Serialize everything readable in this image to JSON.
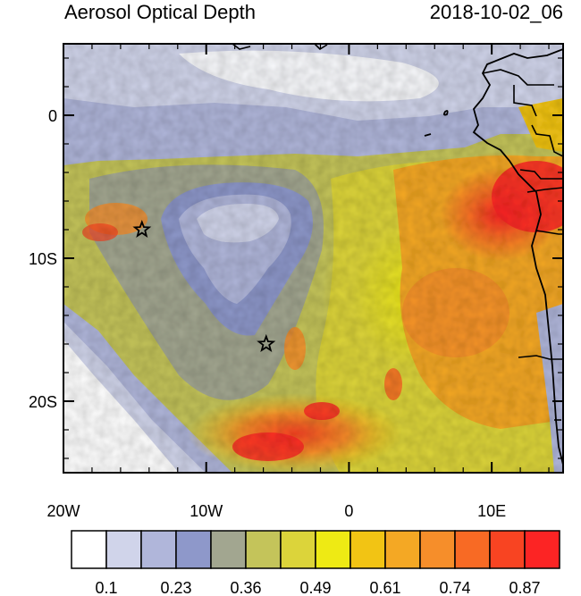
{
  "title": "Aerosol Optical Depth",
  "timestamp": "2018-10-02_06",
  "map": {
    "lon_range": [
      -20,
      15
    ],
    "lat_range": [
      -25,
      5
    ],
    "x_ticks": [
      {
        "lon": -20,
        "label": "20W"
      },
      {
        "lon": -10,
        "label": "10W"
      },
      {
        "lon": 0,
        "label": "0"
      },
      {
        "lon": 10,
        "label": "10E"
      }
    ],
    "y_ticks": [
      {
        "lat": 0,
        "label": "0"
      },
      {
        "lat": -10,
        "label": "10S"
      },
      {
        "lat": -20,
        "label": "20S"
      }
    ],
    "markers": [
      {
        "name": "star-marker-1",
        "symbol": "star",
        "lon": -14.5,
        "lat": -8
      },
      {
        "name": "star-marker-2",
        "symbol": "star",
        "lon": -5.8,
        "lat": -16
      }
    ]
  },
  "colorbar": {
    "colors": [
      "#ffffff",
      "#d0d4ea",
      "#b0b6da",
      "#8e98ca",
      "#a2a690",
      "#c4c45a",
      "#dcd43a",
      "#eeea14",
      "#f2c414",
      "#f4a824",
      "#f68e2a",
      "#f86a24",
      "#f84422",
      "#fc2424"
    ],
    "labels": [
      "0.1",
      "0.23",
      "0.36",
      "0.49",
      "0.61",
      "0.74",
      "0.87"
    ]
  }
}
